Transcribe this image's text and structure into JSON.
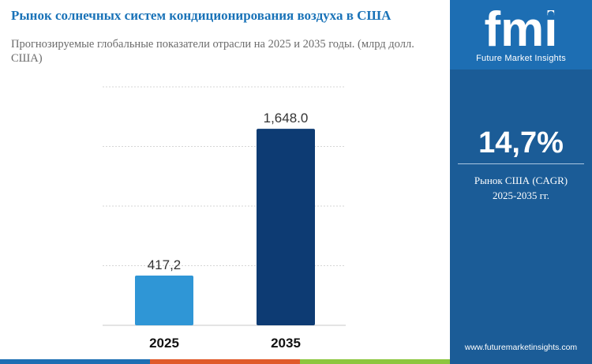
{
  "header": {
    "title": "Рынок солнечных систем кондиционирования воздуха в США",
    "subtitle": "Прогнозируемые глобальные показатели отрасли на 2025 и 2035 годы. (млрд долл. США)"
  },
  "sidebar": {
    "logo_letters": "fmi",
    "brand_name": "Future Market Insights",
    "cagr_value": "14,7%",
    "cagr_label_line1": "Рынок США (CAGR)",
    "cagr_label_line2": "2025-2035 гг.",
    "website": "www.futuremarketinsights.com"
  },
  "colors": {
    "title": "#1a73b8",
    "bar_2025": "#2f96d6",
    "bar_2035": "#0d3b73",
    "sidebar_bg": "#1b5c97",
    "logo_bg": "#1d6eb3",
    "strip": [
      "#1d6eb3",
      "#e05a2a",
      "#8cc63f",
      "#1d6eb3"
    ]
  },
  "chart_data": {
    "type": "bar",
    "title": "Рынок солнечных систем кондиционирования воздуха в США",
    "xlabel": "",
    "ylabel": "",
    "categories": [
      "2025",
      "2035"
    ],
    "values": [
      417.2,
      1648.0
    ],
    "data_labels": [
      "417,2",
      "1,648.0"
    ],
    "ylim": [
      0,
      2000
    ],
    "grid": true,
    "legend": "none"
  }
}
